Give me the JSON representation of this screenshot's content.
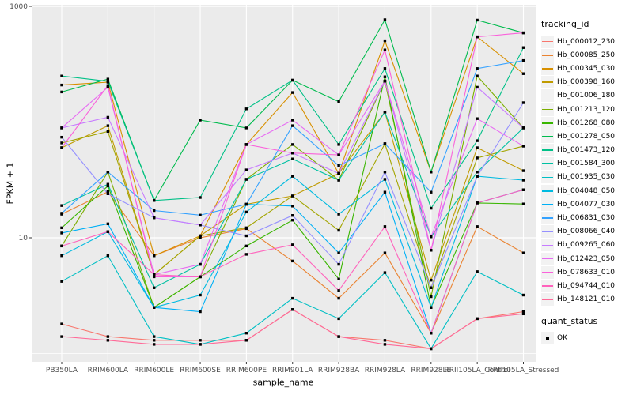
{
  "figure": {
    "background": "#FFFFFF",
    "panel_background": "#EBEBEB",
    "grid_color": "#FFFFFF",
    "axis_text_color": "#4D4D4D",
    "tick_color": "#333333"
  },
  "chart_data": {
    "type": "line",
    "title": "",
    "xlabel": "sample_name",
    "ylabel": "FPKM + 1",
    "y_scale": "log10",
    "ylim": [
      0.85,
      1100
    ],
    "y_ticks": [
      10,
      1000
    ],
    "y_minor_ticks": [
      1,
      100
    ],
    "grid": "on",
    "legend_position": "right",
    "point_marker": "black-square",
    "categories": [
      "PB350LA",
      "RRIM600LA",
      "RRIM600LE",
      "RRIM600SE",
      "RRIM600PE",
      "RRIM901LA",
      "RRIM928BA",
      "RRIM928LA",
      "RRIM928LE",
      "RRII105LA_Control",
      "RRII105LA_Stressed"
    ],
    "series": [
      {
        "name": "Hb_000012_230",
        "color": "#F8766D",
        "values": [
          1.8,
          1.4,
          1.3,
          1.3,
          1.3,
          2.4,
          1.4,
          1.3,
          1.1,
          2.0,
          2.3
        ]
      },
      {
        "name": "Hb_000085_250",
        "color": "#EA8331",
        "values": [
          16,
          25,
          7,
          10,
          12,
          6.3,
          3.0,
          7.4,
          1.5,
          12.5,
          7.4
        ]
      },
      {
        "name": "Hb_000345_030",
        "color": "#D89000",
        "values": [
          209,
          221,
          7.0,
          10.4,
          64,
          180,
          36,
          504,
          37,
          545,
          262
        ]
      },
      {
        "name": "Hb_000398_160",
        "color": "#C09B00",
        "values": [
          60,
          93,
          4.8,
          10.4,
          19.5,
          23,
          36,
          122,
          4.3,
          60,
          38
        ]
      },
      {
        "name": "Hb_001006_180",
        "color": "#A3A500",
        "values": [
          66,
          83,
          4.8,
          10.4,
          12.2,
          23,
          11.6,
          65,
          3.7,
          49,
          62
        ]
      },
      {
        "name": "Hb_001213_120",
        "color": "#7CAE00",
        "values": [
          8.5,
          37,
          2.5,
          4.6,
          32,
          64,
          31.5,
          226,
          3.1,
          250,
          89
        ]
      },
      {
        "name": "Hb_001268_080",
        "color": "#39B600",
        "values": [
          12.2,
          28,
          2.5,
          4.6,
          8.5,
          14.2,
          4.4,
          246,
          2.5,
          20,
          19.6
        ]
      },
      {
        "name": "Hb_001278_050",
        "color": "#00BB4E",
        "values": [
          182,
          235,
          21,
          104,
          89,
          230,
          150,
          766,
          37,
          760,
          590
        ]
      },
      {
        "name": "Hb_001473_120",
        "color": "#00C087",
        "values": [
          250,
          225,
          21,
          22.3,
          130,
          230,
          64,
          290,
          18,
          69,
          440
        ]
      },
      {
        "name": "Hb_001584_300",
        "color": "#00C1A3",
        "values": [
          19,
          29,
          3.7,
          5.9,
          32,
          48,
          31.5,
          122,
          10.2,
          37,
          89
        ]
      },
      {
        "name": "Hb_001935_030",
        "color": "#00BFC4",
        "values": [
          4.2,
          7.0,
          1.4,
          1.2,
          1.5,
          3.0,
          2.0,
          5.0,
          1.1,
          5.1,
          3.2
        ]
      },
      {
        "name": "Hb_004048_050",
        "color": "#00BAE0",
        "values": [
          7.0,
          11.3,
          2.5,
          3.2,
          16.7,
          34,
          16,
          32,
          2.5,
          34,
          31.5
        ]
      },
      {
        "name": "Hb_004077_030",
        "color": "#00B0F6",
        "values": [
          11,
          13.2,
          2.5,
          2.3,
          19.5,
          18.8,
          7.4,
          24.8,
          1.5,
          20,
          26
        ]
      },
      {
        "name": "Hb_006831_030",
        "color": "#35A2FF",
        "values": [
          16.3,
          37,
          17.2,
          15.7,
          19.5,
          93,
          42,
          65,
          24.8,
          290,
          340
        ]
      },
      {
        "name": "Hb_008066_040",
        "color": "#9590FF",
        "values": [
          74,
          24,
          14.9,
          12.9,
          10.4,
          15.6,
          5.9,
          37,
          3.7,
          34,
          147
        ]
      },
      {
        "name": "Hb_009265_060",
        "color": "#C77CFF",
        "values": [
          89,
          110,
          14.9,
          12.9,
          38.6,
          54,
          36,
          226,
          7.8,
          200,
          89
        ]
      },
      {
        "name": "Hb_012423_050",
        "color": "#E76BF3",
        "values": [
          89,
          200,
          4.8,
          5.9,
          64,
          104,
          52,
          226,
          10.2,
          107,
          62
        ]
      },
      {
        "name": "Hb_078633_010",
        "color": "#FA62DB",
        "values": [
          60,
          207,
          4.6,
          4.6,
          64,
          54,
          52,
          420,
          7.8,
          545,
          590
        ]
      },
      {
        "name": "Hb_094744_010",
        "color": "#FF62BC",
        "values": [
          8.5,
          11.3,
          4.8,
          4.6,
          7.2,
          8.7,
          3.5,
          12.5,
          1.5,
          20,
          26
        ]
      },
      {
        "name": "Hb_148121_010",
        "color": "#FF6A98",
        "values": [
          1.4,
          1.3,
          1.2,
          1.2,
          1.3,
          2.4,
          1.4,
          1.2,
          1.1,
          2.0,
          2.2
        ]
      }
    ],
    "legend": {
      "tracking_title": "tracking_id",
      "quant_title": "quant_status",
      "quant_items": [
        {
          "label": "OK",
          "marker": "black-square"
        }
      ]
    }
  }
}
